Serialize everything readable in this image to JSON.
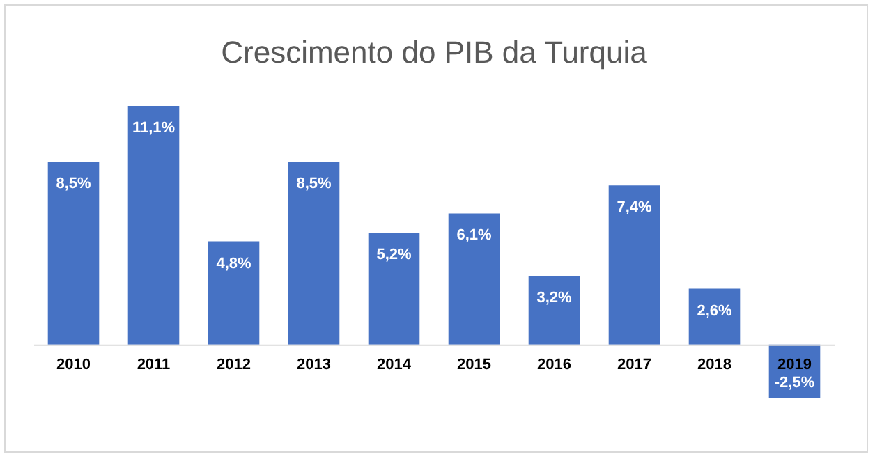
{
  "chart_data": {
    "type": "bar",
    "title": "Crescimento do PIB da Turquia",
    "categories": [
      "2010",
      "2011",
      "2012",
      "2013",
      "2014",
      "2015",
      "2016",
      "2017",
      "2018",
      "2019"
    ],
    "values": [
      8.5,
      11.1,
      4.8,
      8.5,
      5.2,
      6.1,
      3.2,
      7.4,
      2.6,
      -2.5
    ],
    "value_labels": [
      "8,5%",
      "11,1%",
      "4,8%",
      "8,5%",
      "5,2%",
      "6,1%",
      "3,2%",
      "7,4%",
      "2,6%",
      "-2,5%"
    ],
    "color": "#4672c4",
    "grid": false
  }
}
